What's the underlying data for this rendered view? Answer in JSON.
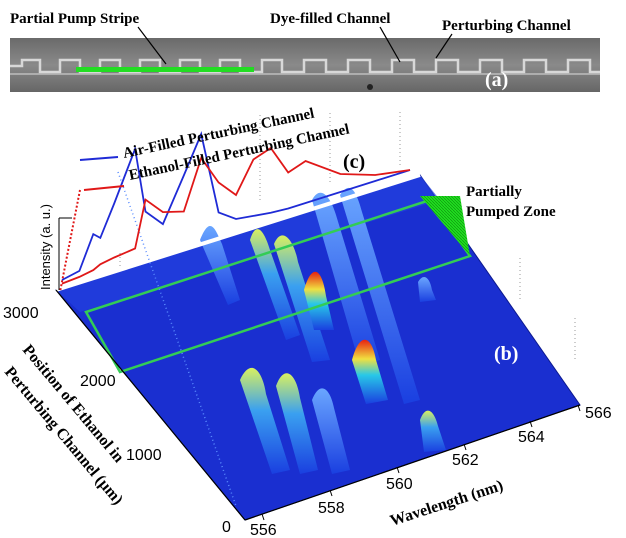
{
  "panel_a": {
    "label": "(a)",
    "annotations": [
      "Partial Pump Stripe",
      "Dye-filled Channel",
      "Perturbing Channel"
    ]
  },
  "panel_b": {
    "label": "(b)",
    "zone_label_line1": "Partially",
    "zone_label_line2": "Pumped Zone",
    "x_axis_label": "Wavelength (nm)",
    "y_axis_label_line1": "Position of Ethanol in",
    "y_axis_label_line2": "Perturbing Channel (µm)",
    "x_ticks": [
      "556",
      "558",
      "560",
      "562",
      "564",
      "566"
    ],
    "y_ticks": [
      "0",
      "1000",
      "2000",
      "3000"
    ]
  },
  "panel_c": {
    "label": "(c)",
    "legend": [
      {
        "name": "Air-Filled Perturbing Channel",
        "color": "#1f2bd6"
      },
      {
        "name": "Ethanol-Filled Perturbing Channel",
        "color": "#e01818"
      }
    ],
    "y_label": "Intensity (a. u.)"
  },
  "colors": {
    "pump_stripe": "#22dd22",
    "surface_base": "#1a2fd0",
    "zone_outline": "#33cc55"
  },
  "chart_data": {
    "type": "line",
    "title": "",
    "xlabel": "Wavelength (nm)",
    "ylabel": "Intensity (a. u.)",
    "xlim": [
      556,
      566
    ],
    "x": [
      556.0,
      556.5,
      556.9,
      557.1,
      557.5,
      558.1,
      558.4,
      558.9,
      559.5,
      560.0,
      560.5,
      561.0,
      561.5,
      562.0,
      562.5,
      563.0,
      564.0,
      565.0,
      566.0
    ],
    "series": [
      {
        "name": "Air-Filled Perturbing Channel",
        "values": [
          0.05,
          0.08,
          0.35,
          0.3,
          0.55,
          0.95,
          0.4,
          0.25,
          0.6,
          0.9,
          0.2,
          0.1,
          0.08,
          0.06,
          0.05,
          0.05,
          0.05,
          0.05,
          0.05
        ]
      },
      {
        "name": "Ethanol-Filled Perturbing Channel",
        "values": [
          0.02,
          0.03,
          0.05,
          0.08,
          0.1,
          0.12,
          0.5,
          0.35,
          0.3,
          0.7,
          0.45,
          0.3,
          0.55,
          0.6,
          0.35,
          0.4,
          0.2,
          0.1,
          0.05
        ]
      }
    ]
  }
}
